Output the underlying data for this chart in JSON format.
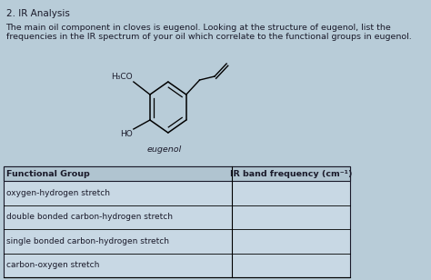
{
  "title": "2. IR Analysis",
  "body_text_line1": "The main oil component in cloves is eugenol. Looking at the structure of eugenol, list the",
  "body_text_line2": "frequencies in the IR spectrum of your oil which correlate to the functional groups in eugenol.",
  "molecule_label": "eugenol",
  "h3co_label": "H₃CO",
  "ho_label": "HO",
  "table_headers": [
    "Functional Group",
    "IR band frequency (cm⁻¹)"
  ],
  "table_rows": [
    "oxygen-hydrogen stretch",
    "double bonded carbon-hydrogen stretch",
    "single bonded carbon-hydrogen stretch",
    "carbon-oxygen stretch"
  ],
  "background_color": "#b8ccd8",
  "text_color": "#1a1a2a",
  "table_bg": "#c8d8e4",
  "header_bg": "#b0c4d0",
  "font_size_title": 7.5,
  "font_size_body": 6.8,
  "font_size_table_header": 6.8,
  "font_size_table_row": 6.5,
  "font_size_molecule": 6.5
}
